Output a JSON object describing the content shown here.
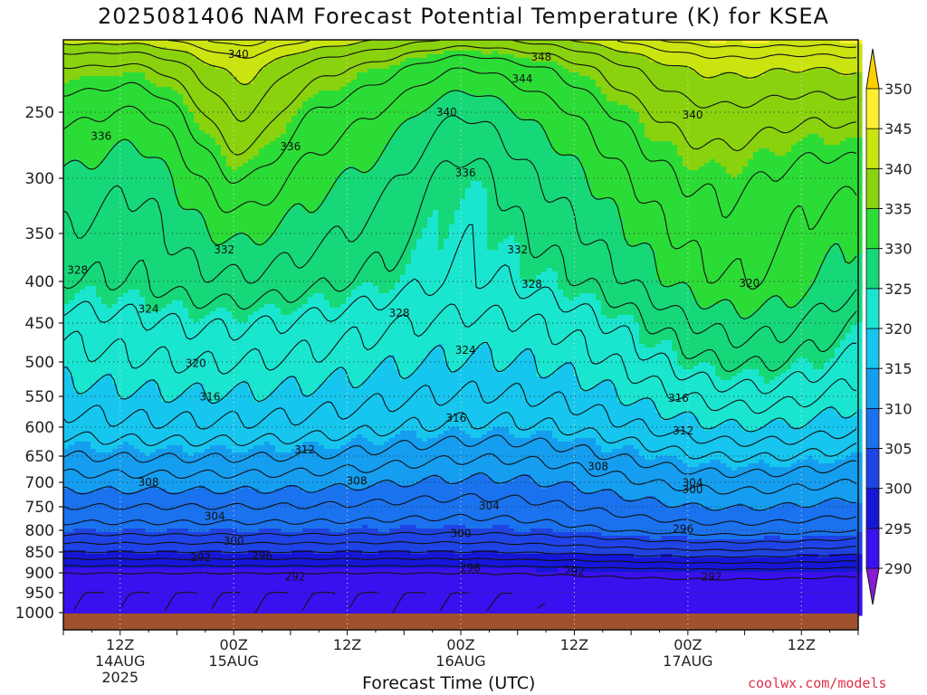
{
  "chart_data": {
    "type": "heatmap",
    "title": "2025081406 NAM Forecast Potential Temperature (K) for KSEA",
    "xlabel": "Forecast Time (UTC)",
    "ylabel": "",
    "credit": "coolwx.com/models",
    "y_axis": {
      "ticks": [
        250,
        300,
        350,
        400,
        450,
        500,
        550,
        600,
        650,
        700,
        750,
        800,
        850,
        900,
        950,
        1000
      ],
      "range": [
        1000,
        200
      ],
      "grid": "dotted"
    },
    "x_axis": {
      "ticks": [
        {
          "hour": 6,
          "label": "12Z",
          "sub1": "14AUG",
          "sub2": "2025"
        },
        {
          "hour": 18,
          "label": "00Z",
          "sub1": "15AUG",
          "sub2": ""
        },
        {
          "hour": 30,
          "label": "12Z",
          "sub1": "",
          "sub2": ""
        },
        {
          "hour": 42,
          "label": "00Z",
          "sub1": "16AUG",
          "sub2": ""
        },
        {
          "hour": 54,
          "label": "12Z",
          "sub1": "",
          "sub2": ""
        },
        {
          "hour": 66,
          "label": "00Z",
          "sub1": "17AUG",
          "sub2": ""
        },
        {
          "hour": 78,
          "label": "12Z",
          "sub1": "",
          "sub2": ""
        }
      ],
      "range": [
        0,
        84
      ],
      "grid": "dotted"
    },
    "colorbar": {
      "labels": [
        290,
        295,
        300,
        305,
        310,
        315,
        320,
        325,
        330,
        335,
        340,
        345,
        350
      ],
      "colors": [
        "#8a1ad8",
        "#3a10ee",
        "#1616d8",
        "#1e44e6",
        "#1a72ee",
        "#159ef0",
        "#16c6ee",
        "#1ae6d0",
        "#16d878",
        "#2cdc36",
        "#8ad20e",
        "#cae410",
        "#ffee30",
        "#ffd000"
      ]
    },
    "fields": {
      "theta_surface_hour0": [
        292,
        292,
        294,
        300,
        305,
        308,
        311,
        314,
        317,
        319,
        321,
        323,
        326,
        328,
        330,
        333,
        336,
        338,
        341
      ],
      "theta_pressure_levels": [
        1000,
        950,
        900,
        850,
        800,
        750,
        700,
        650,
        600,
        550,
        500,
        450,
        400,
        350,
        300,
        250,
        220,
        210,
        200
      ]
    },
    "contour_labels": [
      {
        "value": "340",
        "t": 18.5,
        "p": 210
      },
      {
        "value": "348",
        "t": 50.5,
        "p": 212
      },
      {
        "value": "344",
        "t": 48.5,
        "p": 227
      },
      {
        "value": "340",
        "t": 40.5,
        "p": 250
      },
      {
        "value": "340",
        "t": 66.5,
        "p": 252
      },
      {
        "value": "336",
        "t": 4.0,
        "p": 268
      },
      {
        "value": "336",
        "t": 24.0,
        "p": 276
      },
      {
        "value": "336",
        "t": 42.5,
        "p": 296
      },
      {
        "value": "332",
        "t": 17.0,
        "p": 367
      },
      {
        "value": "332",
        "t": 48.0,
        "p": 367
      },
      {
        "value": "328",
        "t": 1.5,
        "p": 388
      },
      {
        "value": "328",
        "t": 49.5,
        "p": 403
      },
      {
        "value": "328",
        "t": 35.5,
        "p": 438
      },
      {
        "value": "324",
        "t": 9.0,
        "p": 433
      },
      {
        "value": "320",
        "t": 72.5,
        "p": 402
      },
      {
        "value": "324",
        "t": 42.5,
        "p": 485
      },
      {
        "value": "320",
        "t": 14.0,
        "p": 502
      },
      {
        "value": "316",
        "t": 15.5,
        "p": 551
      },
      {
        "value": "316",
        "t": 65.0,
        "p": 553
      },
      {
        "value": "316",
        "t": 41.5,
        "p": 585
      },
      {
        "value": "312",
        "t": 65.5,
        "p": 606
      },
      {
        "value": "312",
        "t": 25.5,
        "p": 639
      },
      {
        "value": "308",
        "t": 56.5,
        "p": 670
      },
      {
        "value": "308",
        "t": 31.0,
        "p": 697
      },
      {
        "value": "308",
        "t": 9.0,
        "p": 700
      },
      {
        "value": "304",
        "t": 66.5,
        "p": 701
      },
      {
        "value": "300",
        "t": 66.5,
        "p": 715
      },
      {
        "value": "304",
        "t": 45.0,
        "p": 748
      },
      {
        "value": "304",
        "t": 16.0,
        "p": 770
      },
      {
        "value": "296",
        "t": 65.5,
        "p": 797
      },
      {
        "value": "300",
        "t": 42.0,
        "p": 807
      },
      {
        "value": "300",
        "t": 18.0,
        "p": 825
      },
      {
        "value": "296",
        "t": 21.0,
        "p": 860
      },
      {
        "value": "292",
        "t": 14.5,
        "p": 863
      },
      {
        "value": "296",
        "t": 43.0,
        "p": 888
      },
      {
        "value": "292",
        "t": 54.0,
        "p": 897
      },
      {
        "value": "292",
        "t": 24.5,
        "p": 910
      },
      {
        "value": "292",
        "t": 68.5,
        "p": 910
      }
    ]
  }
}
